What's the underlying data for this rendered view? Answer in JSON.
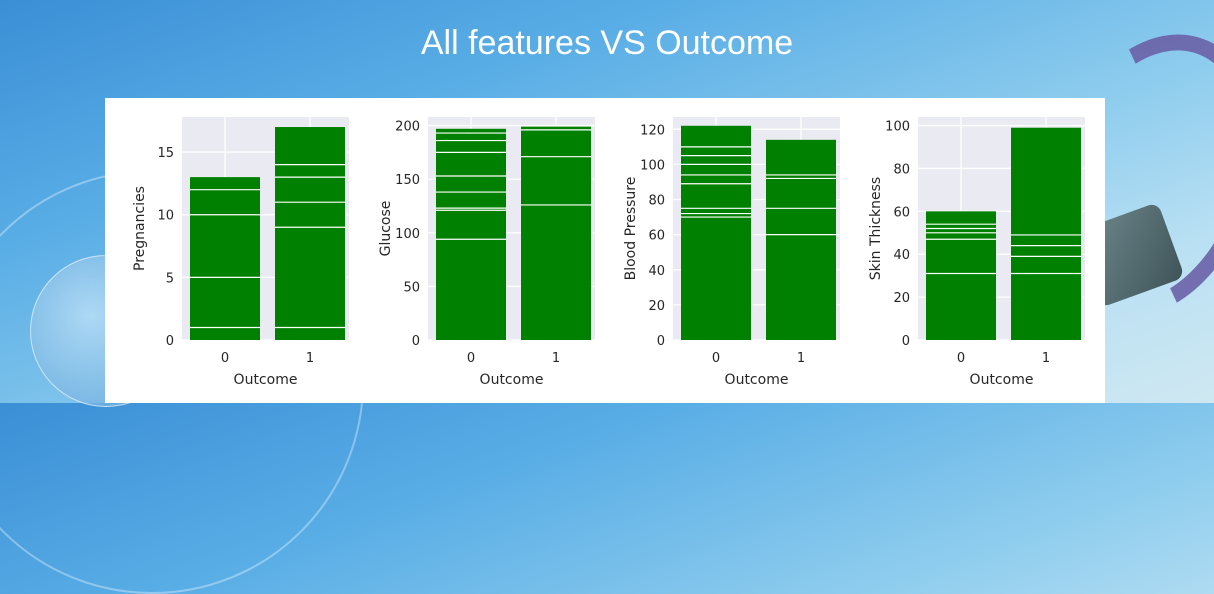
{
  "title": "All features VS Outcome",
  "colors": {
    "bar": "#008000",
    "plot_bg": "#eaeaf2",
    "grid": "#ffffff"
  },
  "chart_data": [
    {
      "type": "bar",
      "categories": [
        "0",
        "1"
      ],
      "xlabel": "Outcome",
      "ylabel": "Pregnancies",
      "ylim": [
        0,
        17.8
      ],
      "yticks": [
        0,
        5,
        10,
        15
      ],
      "values": [
        13,
        17
      ],
      "inner_lines": [
        [
          1,
          5,
          10,
          12
        ],
        [
          1,
          9,
          11,
          13,
          14
        ]
      ]
    },
    {
      "type": "bar",
      "categories": [
        "0",
        "1"
      ],
      "xlabel": "Outcome",
      "ylabel": "Glucose",
      "ylim": [
        0,
        208
      ],
      "yticks": [
        0,
        50,
        100,
        150,
        200
      ],
      "values": [
        197,
        199
      ],
      "inner_lines": [
        [
          94,
          121,
          123,
          138,
          153,
          175,
          186,
          193
        ],
        [
          126,
          171,
          196
        ]
      ]
    },
    {
      "type": "bar",
      "categories": [
        "0",
        "1"
      ],
      "xlabel": "Outcome",
      "ylabel": "Blood Pressure",
      "ylim": [
        0,
        127
      ],
      "yticks": [
        0,
        20,
        40,
        60,
        80,
        100,
        120
      ],
      "values": [
        122,
        114
      ],
      "inner_lines": [
        [
          70,
          72,
          75,
          89,
          94,
          100,
          105,
          110
        ],
        [
          60,
          75,
          92,
          94
        ]
      ]
    },
    {
      "type": "bar",
      "categories": [
        "0",
        "1"
      ],
      "xlabel": "Outcome",
      "ylabel": "Skin Thickness",
      "ylim": [
        0,
        104
      ],
      "yticks": [
        0,
        20,
        40,
        60,
        80,
        100
      ],
      "values": [
        60,
        99
      ],
      "inner_lines": [
        [
          31,
          47,
          50,
          52,
          54
        ],
        [
          31,
          39,
          44,
          49
        ]
      ]
    }
  ]
}
